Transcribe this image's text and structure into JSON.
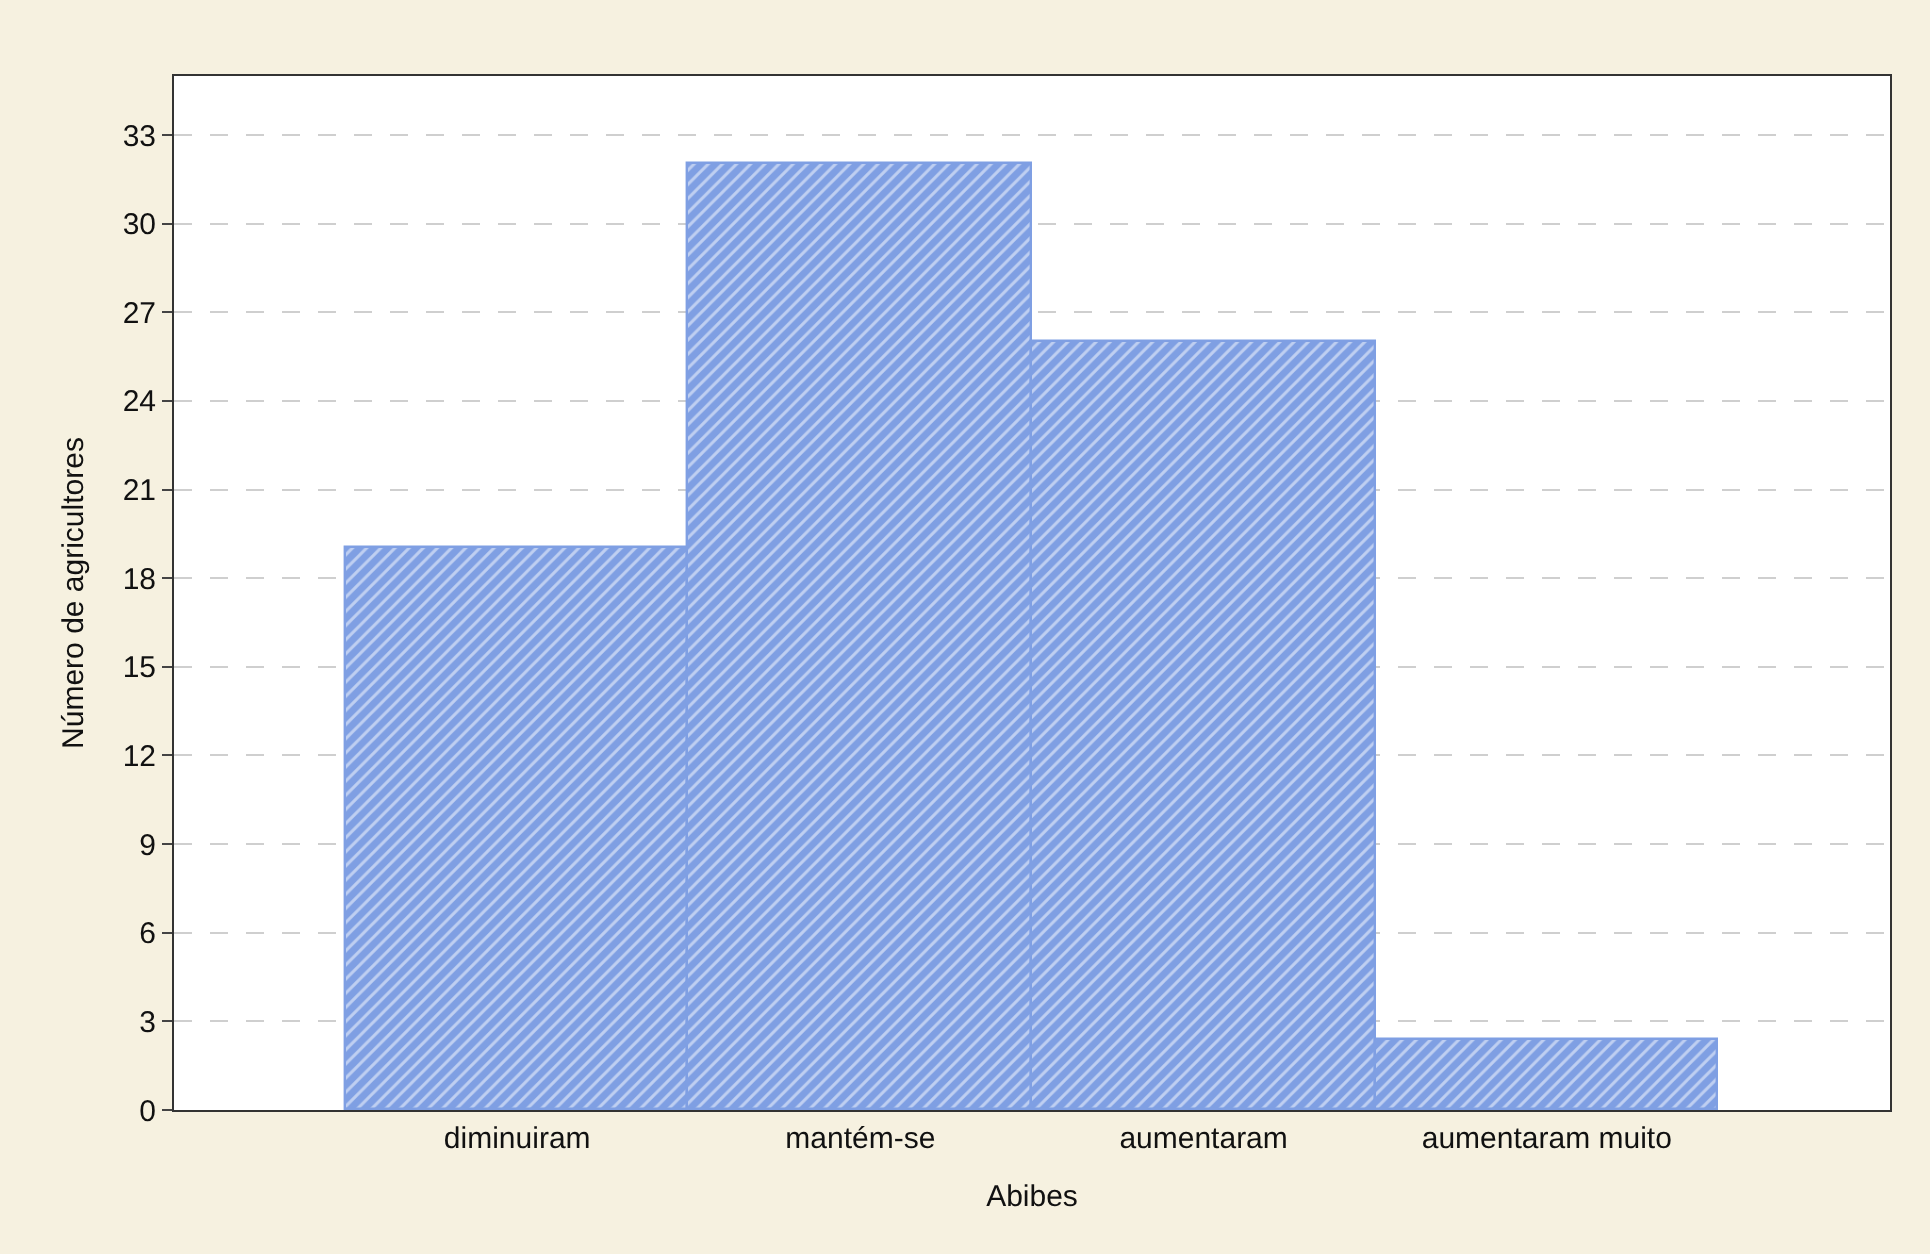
{
  "chart_data": {
    "type": "bar",
    "xlabel": "Abibes",
    "ylabel": "Número de agricultores",
    "categories": [
      "diminuiram",
      "mantém-se",
      "aumentaram",
      "aumentaram muito"
    ],
    "values": [
      19,
      32,
      26,
      2.4
    ],
    "color": "#7f9fe3",
    "ylim": [
      0,
      35
    ],
    "yticks": [
      0,
      3,
      6,
      9,
      12,
      15,
      18,
      21,
      24,
      27,
      30,
      33
    ],
    "grid": "y"
  }
}
